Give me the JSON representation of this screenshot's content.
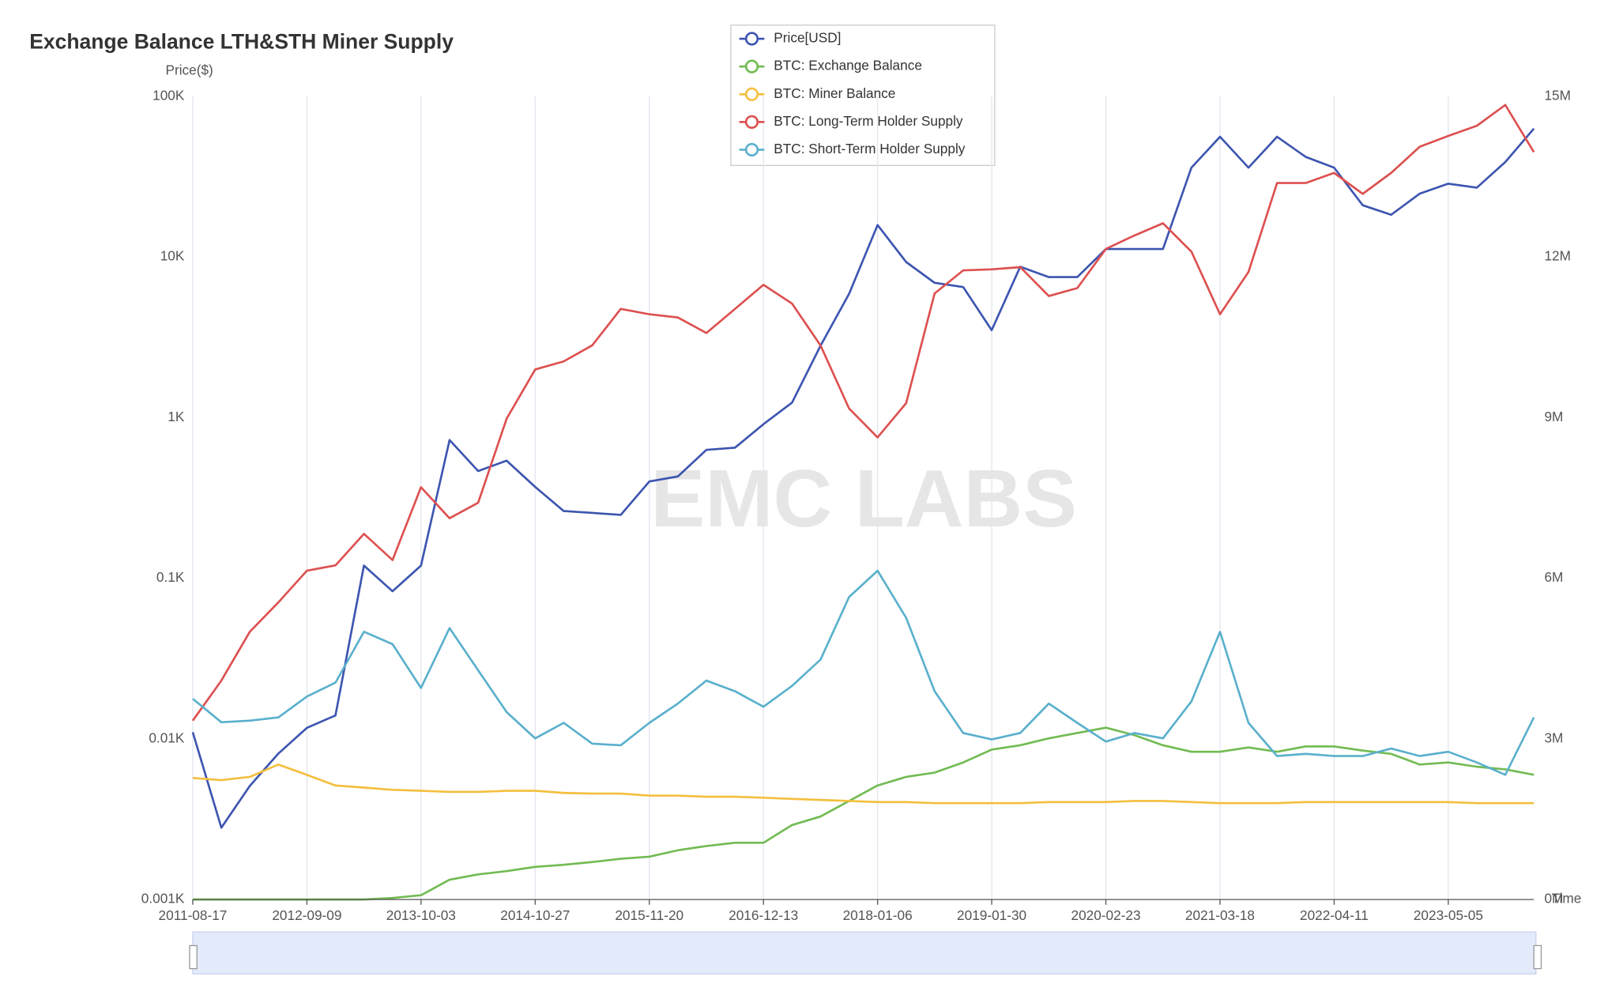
{
  "chart_data": {
    "type": "line",
    "title": "Exchange Balance LTH&STH Miner Supply",
    "ylabel": "Price($)",
    "xlabel": "Time",
    "watermark": "EMC LABS",
    "log_y": true,
    "legend_position": "top",
    "x": [
      "2011-08-17",
      null,
      null,
      null,
      "2012-09-09",
      null,
      null,
      null,
      "2013-10-03",
      null,
      null,
      null,
      "2014-10-27",
      null,
      null,
      null,
      "2015-11-20",
      null,
      null,
      null,
      "2016-12-13",
      null,
      null,
      null,
      "2018-01-06",
      null,
      null,
      null,
      "2019-01-30",
      null,
      null,
      null,
      "2020-02-23",
      null,
      null,
      null,
      "2021-03-18",
      null,
      null,
      null,
      "2022-04-11",
      null,
      null,
      null,
      "2023-05-05",
      null,
      null,
      null
    ],
    "ylim": [
      1,
      100000
    ],
    "yticks": [
      {
        "value": 1,
        "label": "0.001K"
      },
      {
        "value": 10,
        "label": "0.01K"
      },
      {
        "value": 100,
        "label": "0.1K"
      },
      {
        "value": 1000,
        "label": "1K"
      },
      {
        "value": 10000,
        "label": "10K"
      },
      {
        "value": 100000,
        "label": "100K"
      }
    ],
    "y2lim": [
      0,
      15
    ],
    "y2ticks": [
      {
        "value": 0,
        "label": "0M"
      },
      {
        "value": 3,
        "label": "3M"
      },
      {
        "value": 6,
        "label": "6M"
      },
      {
        "value": 9,
        "label": "9M"
      },
      {
        "value": 12,
        "label": "12M"
      },
      {
        "value": 15,
        "label": "15M"
      }
    ],
    "series": [
      {
        "name": "Price[USD]",
        "color": "#3d55b0",
        "values": [
          11,
          2.8,
          5.1,
          8.1,
          11.7,
          14,
          120,
          83,
          120,
          725,
          465,
          540,
          370,
          262,
          255,
          248,
          400,
          430,
          630,
          650,
          910,
          1240,
          2800,
          5900,
          15800,
          9300,
          6900,
          6500,
          3500,
          8700,
          7500,
          7500,
          11200,
          11200,
          11200,
          36000,
          56000,
          36000,
          56000,
          42000,
          36000,
          21000,
          18300,
          24800,
          28600,
          27000,
          39000,
          63000
        ]
      },
      {
        "name": "BTC: Exchange Balance",
        "color": "#72bb53",
        "axis": "y2",
        "values": [
          0,
          0,
          0,
          0,
          0,
          0,
          0,
          0.03,
          0.08,
          0.37,
          0.47,
          0.53,
          0.61,
          0.65,
          0.7,
          0.76,
          0.8,
          0.92,
          1.0,
          1.06,
          1.06,
          1.39,
          1.55,
          1.84,
          2.13,
          2.29,
          2.37,
          2.56,
          2.8,
          2.88,
          3.01,
          3.11,
          3.21,
          3.07,
          2.88,
          2.76,
          2.76,
          2.84,
          2.76,
          2.86,
          2.86,
          2.78,
          2.72,
          2.52,
          2.56,
          2.48,
          2.43,
          2.33
        ]
      },
      {
        "name": "BTC: Miner Balance",
        "color": "#f4bf3f",
        "axis": "y2",
        "values": [
          2.27,
          2.23,
          2.29,
          2.52,
          2.33,
          2.13,
          2.09,
          2.05,
          2.03,
          2.01,
          2.01,
          2.03,
          2.03,
          1.99,
          1.98,
          1.98,
          1.94,
          1.94,
          1.92,
          1.92,
          1.9,
          1.88,
          1.86,
          1.84,
          1.82,
          1.82,
          1.8,
          1.8,
          1.8,
          1.8,
          1.82,
          1.82,
          1.82,
          1.84,
          1.84,
          1.82,
          1.8,
          1.8,
          1.8,
          1.82,
          1.82,
          1.82,
          1.82,
          1.82,
          1.82,
          1.8,
          1.8,
          1.8
        ]
      },
      {
        "name": "BTC: Long-Term Holder Supply",
        "color": "#dd5050",
        "axis": "y2",
        "values": [
          3.34,
          4.09,
          5.0,
          5.55,
          6.14,
          6.24,
          6.83,
          6.34,
          7.7,
          7.12,
          7.41,
          8.98,
          9.9,
          10.05,
          10.35,
          11.03,
          10.93,
          10.87,
          10.58,
          11.03,
          11.48,
          11.13,
          10.35,
          9.17,
          8.63,
          9.27,
          11.32,
          11.75,
          11.77,
          11.81,
          11.27,
          11.42,
          12.15,
          12.4,
          12.63,
          12.1,
          10.93,
          11.72,
          13.38,
          13.38,
          13.57,
          13.18,
          13.57,
          14.06,
          14.26,
          14.45,
          14.84,
          13.96
        ]
      },
      {
        "name": "BTC: Short-Term Holder Supply",
        "color": "#5ab0cc",
        "axis": "y2",
        "values": [
          3.75,
          3.31,
          3.34,
          3.4,
          3.79,
          4.05,
          5.0,
          4.77,
          3.95,
          5.07,
          4.28,
          3.5,
          3.01,
          3.3,
          2.91,
          2.88,
          3.3,
          3.66,
          4.09,
          3.89,
          3.6,
          3.99,
          4.48,
          5.65,
          6.14,
          5.26,
          3.89,
          3.11,
          2.99,
          3.11,
          3.66,
          3.3,
          2.95,
          3.11,
          3.01,
          3.7,
          5.0,
          3.3,
          2.68,
          2.72,
          2.68,
          2.68,
          2.82,
          2.68,
          2.76,
          2.56,
          2.33,
          3.4
        ]
      }
    ]
  }
}
